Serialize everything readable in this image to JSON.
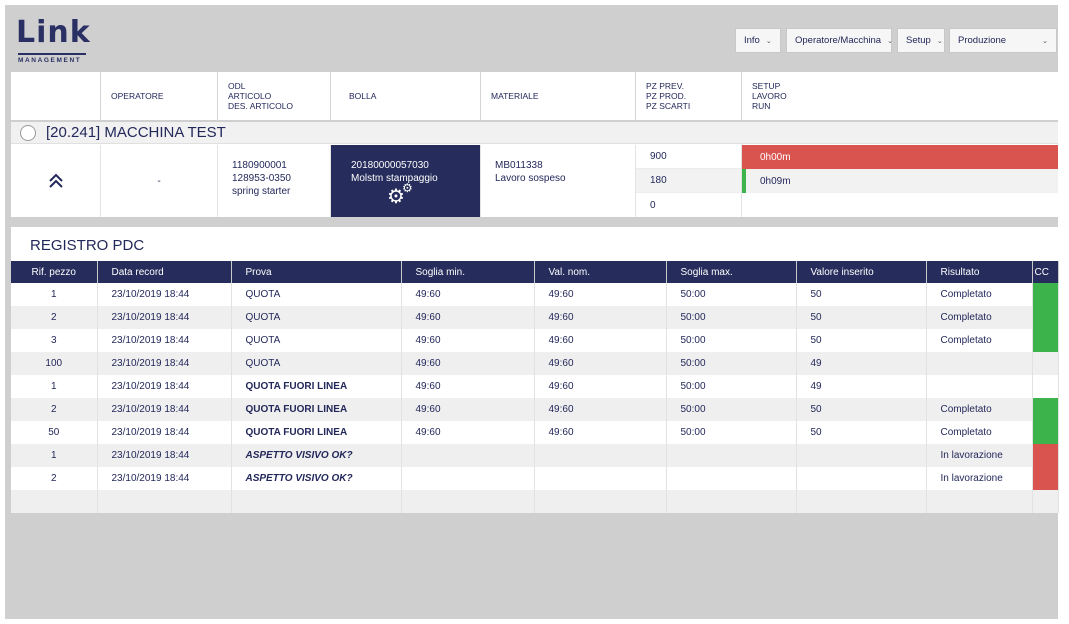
{
  "logo": {
    "word": "Link",
    "sub": "MANAGEMENT"
  },
  "nav": {
    "info": "Info",
    "operatore_macchina": "Operatore/Macchina",
    "setup": "Setup",
    "produzione": "Produzione"
  },
  "columns": {
    "operatore": "OPERATORE",
    "odl": "ODL",
    "articolo": "ARTICOLO",
    "des_articolo": "DES. ARTICOLO",
    "bolla": "BOLLA",
    "materiale": "MATERIALE",
    "pz_prev": "PZ PREV.",
    "pz_prod": "PZ PROD.",
    "pz_scarti": "PZ SCARTI",
    "setup": "SETUP",
    "lavoro": "LAVORO",
    "run": "RUN"
  },
  "machine": {
    "name": "[20.241] MACCHINA TEST",
    "operatore": "-",
    "odl": "1180900001",
    "articolo": "128953-0350",
    "des_articolo": "spring starter",
    "bolla_code": "20180000057030",
    "bolla_desc": "Molstm stampaggio",
    "materiale_code": "MB011338",
    "materiale_status": "Lavoro sospeso",
    "pz_prev": "900",
    "pz_prod": "180",
    "pz_scarti": "0",
    "setup_time": "0h00m",
    "lavoro_time": "0h09m",
    "colors": {
      "red": "#d9534f",
      "green": "#3cb44b",
      "navy": "#262c5b"
    }
  },
  "registro": {
    "title": "REGISTRO PDC",
    "headers": [
      "Rif. pezzo",
      "Data record",
      "Prova",
      "Soglia min.",
      "Val. nom.",
      "Soglia max.",
      "Valore inserito",
      "Risultato",
      "CC"
    ],
    "rows": [
      {
        "rif": "1",
        "data": "23/10/2019  18:44",
        "prova": "QUOTA",
        "style": "normal",
        "min": "49:60",
        "nom": "49:60",
        "max": "50:00",
        "val": "50",
        "ris": "Completato",
        "cc": "green"
      },
      {
        "rif": "2",
        "data": "23/10/2019  18:44",
        "prova": "QUOTA",
        "style": "normal",
        "min": "49:60",
        "nom": "49:60",
        "max": "50:00",
        "val": "50",
        "ris": "Completato",
        "cc": "green"
      },
      {
        "rif": "3",
        "data": "23/10/2019  18:44",
        "prova": "QUOTA",
        "style": "normal",
        "min": "49:60",
        "nom": "49:60",
        "max": "50:00",
        "val": "50",
        "ris": "Completato",
        "cc": "green"
      },
      {
        "rif": "100",
        "data": "23/10/2019  18:44",
        "prova": "QUOTA",
        "style": "normal",
        "min": "49:60",
        "nom": "49:60",
        "max": "50:00",
        "val": "49",
        "ris": "",
        "cc": "none"
      },
      {
        "rif": "1",
        "data": "23/10/2019  18:44",
        "prova": "QUOTA FUORI LINEA",
        "style": "bold",
        "min": "49:60",
        "nom": "49:60",
        "max": "50:00",
        "val": "49",
        "ris": "",
        "cc": "none"
      },
      {
        "rif": "2",
        "data": "23/10/2019  18:44",
        "prova": "QUOTA FUORI LINEA",
        "style": "bold",
        "min": "49:60",
        "nom": "49:60",
        "max": "50:00",
        "val": "50",
        "ris": "Completato",
        "cc": "green"
      },
      {
        "rif": "50",
        "data": "23/10/2019  18:44",
        "prova": "QUOTA FUORI LINEA",
        "style": "bold",
        "min": "49:60",
        "nom": "49:60",
        "max": "50:00",
        "val": "50",
        "ris": "Completato",
        "cc": "green"
      },
      {
        "rif": "1",
        "data": "23/10/2019  18:44",
        "prova": "ASPETTO VISIVO OK?",
        "style": "italic",
        "min": "",
        "nom": "",
        "max": "",
        "val": "",
        "ris": "In lavorazione",
        "cc": "red"
      },
      {
        "rif": "2",
        "data": "23/10/2019  18:44",
        "prova": "ASPETTO VISIVO OK?",
        "style": "italic",
        "min": "",
        "nom": "",
        "max": "",
        "val": "",
        "ris": "In lavorazione",
        "cc": "red"
      },
      {
        "rif": "",
        "data": "",
        "prova": "",
        "style": "normal",
        "min": "",
        "nom": "",
        "max": "",
        "val": "",
        "ris": "",
        "cc": "none"
      }
    ]
  }
}
